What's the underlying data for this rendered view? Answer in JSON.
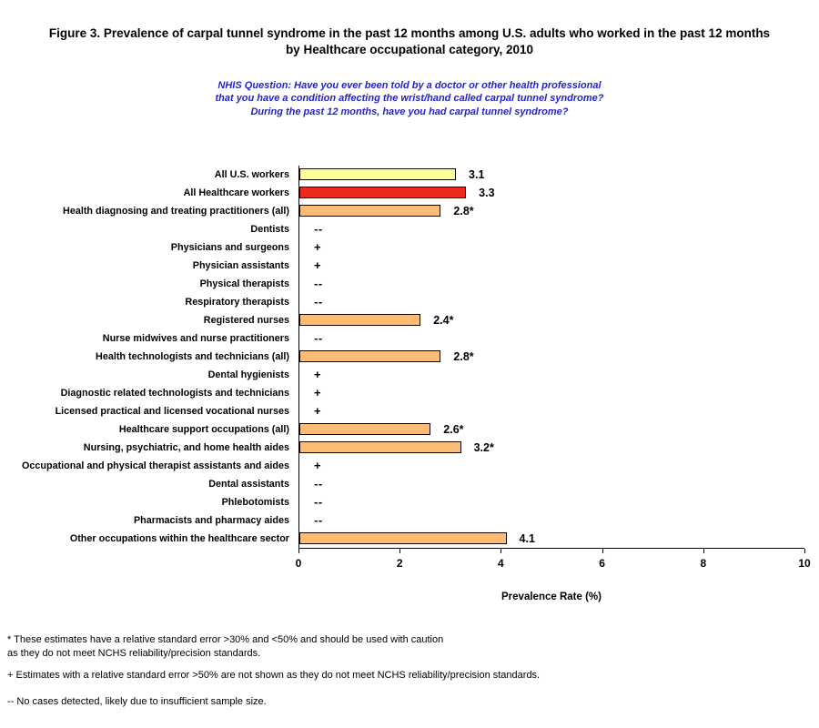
{
  "header": {
    "title_line1": "Figure 3. Prevalence of carpal tunnel syndrome in the past 12 months among U.S. adults who worked in the past 12 months",
    "title_line2": "by Healthcare occupational category, 2010",
    "subtitle_line1": "NHIS Question: Have you ever been told by a doctor or other health professional",
    "subtitle_line2": "that you have a condition affecting the wrist/hand called carpal tunnel syndrome?",
    "subtitle_line3": "During the past 12 months, have you had carpal tunnel syndrome?"
  },
  "chart_data": {
    "type": "bar",
    "orientation": "horizontal",
    "title": "Prevalence of carpal tunnel syndrome in the past 12 months among U.S. adults who worked in the past 12 months by Healthcare occupational category, 2010",
    "xlabel": "Prevalence Rate (%)",
    "ylabel": "",
    "xlim": [
      0,
      10
    ],
    "xticks": [
      0,
      2,
      4,
      6,
      8,
      10
    ],
    "grid": false,
    "legend": "none",
    "rows": [
      {
        "category": "All U.S. workers",
        "value": 3.1,
        "label": "3.1",
        "color": "#FFFF9E"
      },
      {
        "category": "All Healthcare workers",
        "value": 3.3,
        "label": "3.3",
        "color": "#EE2A1C"
      },
      {
        "category": "Health diagnosing and treating practitioners (all)",
        "value": 2.8,
        "label": "2.8*",
        "color": "#FBBC76"
      },
      {
        "category": "Dentists",
        "value": null,
        "label": "--"
      },
      {
        "category": "Physicians and surgeons",
        "value": null,
        "label": "+"
      },
      {
        "category": "Physician assistants",
        "value": null,
        "label": "+"
      },
      {
        "category": "Physical therapists",
        "value": null,
        "label": "--"
      },
      {
        "category": "Respiratory therapists",
        "value": null,
        "label": "--"
      },
      {
        "category": "Registered nurses",
        "value": 2.4,
        "label": "2.4*",
        "color": "#FBBC76"
      },
      {
        "category": "Nurse midwives and nurse practitioners",
        "value": null,
        "label": "--"
      },
      {
        "category": "Health technologists and technicians (all)",
        "value": 2.8,
        "label": "2.8*",
        "color": "#FBBC76"
      },
      {
        "category": "Dental hygienists",
        "value": null,
        "label": "+"
      },
      {
        "category": "Diagnostic related technologists and technicians",
        "value": null,
        "label": "+"
      },
      {
        "category": "Licensed practical and licensed vocational nurses",
        "value": null,
        "label": "+"
      },
      {
        "category": "Healthcare support occupations (all)",
        "value": 2.6,
        "label": "2.6*",
        "color": "#FBBC76"
      },
      {
        "category": "Nursing, psychiatric, and home health aides",
        "value": 3.2,
        "label": "3.2*",
        "color": "#FBBC76"
      },
      {
        "category": "Occupational and physical therapist assistants and aides",
        "value": null,
        "label": "+"
      },
      {
        "category": "Dental assistants",
        "value": null,
        "label": "--"
      },
      {
        "category": "Phlebotomists",
        "value": null,
        "label": "--"
      },
      {
        "category": "Pharmacists and pharmacy aides",
        "value": null,
        "label": "--"
      },
      {
        "category": "Other occupations within the healthcare sector",
        "value": 4.1,
        "label": "4.1",
        "color": "#FBBC76"
      }
    ]
  },
  "colors": {
    "subtitle_text": "#2323C8",
    "bar_border": "#000000",
    "axis": "#000000",
    "default_bar": "#FBBC76"
  },
  "footnotes": [
    "* These estimates have a relative standard error >30% and <50% and should be used with caution\n   as they do not meet NCHS reliability/precision standards.",
    "+ Estimates with a relative standard error >50% are not shown as they do not meet NCHS reliability/precision standards.",
    "-- No cases detected, likely due to insufficient sample size."
  ]
}
